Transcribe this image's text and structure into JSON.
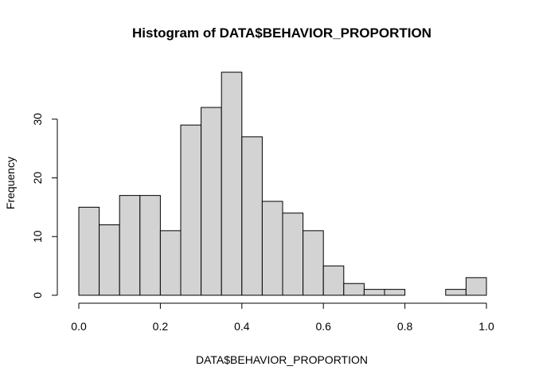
{
  "chart_data": {
    "type": "bar",
    "title": "Histogram of DATA$BEHAVIOR_PROPORTION",
    "xlabel": "DATA$BEHAVIOR_PROPORTION",
    "ylabel": "Frequency",
    "bin_edges": [
      0.0,
      0.05,
      0.1,
      0.15,
      0.2,
      0.25,
      0.3,
      0.35,
      0.4,
      0.45,
      0.5,
      0.55,
      0.6,
      0.65,
      0.7,
      0.75,
      0.8,
      0.85,
      0.9,
      0.95,
      1.0
    ],
    "values": [
      15,
      12,
      17,
      17,
      11,
      29,
      32,
      38,
      27,
      16,
      14,
      11,
      5,
      2,
      1,
      1,
      0,
      0,
      1,
      3
    ],
    "xlim": [
      0.0,
      1.0
    ],
    "ylim": [
      0,
      40
    ],
    "xticks": [
      0.0,
      0.2,
      0.4,
      0.6,
      0.8,
      1.0
    ],
    "xtick_labels": [
      "0.0",
      "0.2",
      "0.4",
      "0.6",
      "0.8",
      "1.0"
    ],
    "yticks": [
      0,
      10,
      20,
      30
    ],
    "ytick_labels": [
      "0",
      "10",
      "20",
      "30"
    ],
    "grid": false,
    "legend": "none",
    "bar_fill": "#d3d3d3",
    "bar_stroke": "#000000"
  }
}
